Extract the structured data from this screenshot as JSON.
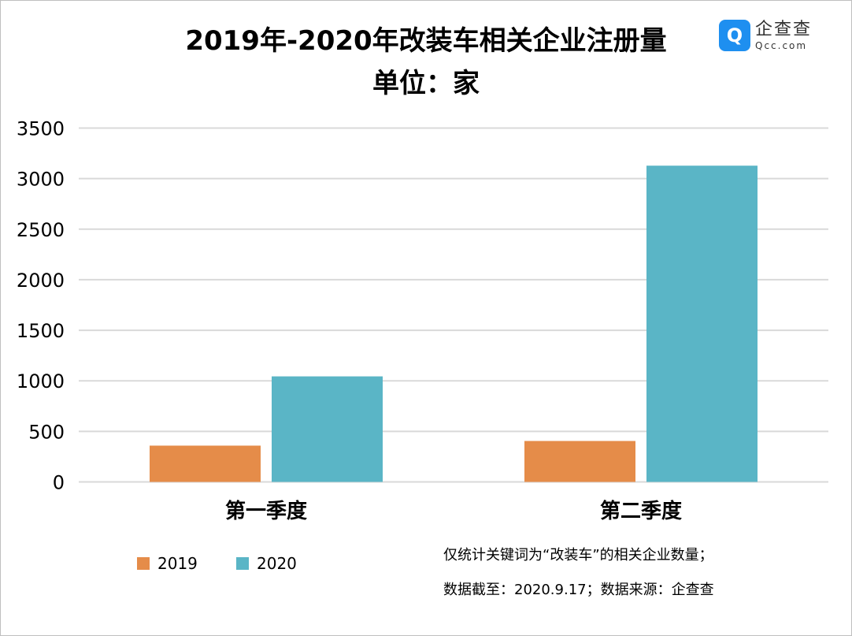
{
  "title": "2019年-2020年改装车相关企业注册量",
  "subtitle": "单位：家",
  "logo": {
    "cn": "企查查",
    "en": "Qcc.com",
    "icon": "qcc-logo-icon"
  },
  "notes": [
    "仅统计关键词为“改装车”的相关企业数量；",
    "数据截至：2020.9.17；数据来源：企查查"
  ],
  "colors": {
    "2019": "#e58c49",
    "2020": "#5ab5c6",
    "grid": "#d9d9d9"
  },
  "chart_data": {
    "type": "bar",
    "title": "2019年-2020年改装车相关企业注册量",
    "subtitle": "单位：家",
    "categories": [
      "第一季度",
      "第二季度"
    ],
    "series": [
      {
        "name": "2019",
        "values": [
          359,
          405
        ]
      },
      {
        "name": "2020",
        "values": [
          1044,
          3128
        ]
      }
    ],
    "ylim": [
      0,
      3500
    ],
    "yticks": [
      "0",
      "500",
      "1000",
      "1500",
      "2000",
      "2500",
      "3000",
      "3500"
    ],
    "grid": true,
    "legend": "bottom-left"
  }
}
